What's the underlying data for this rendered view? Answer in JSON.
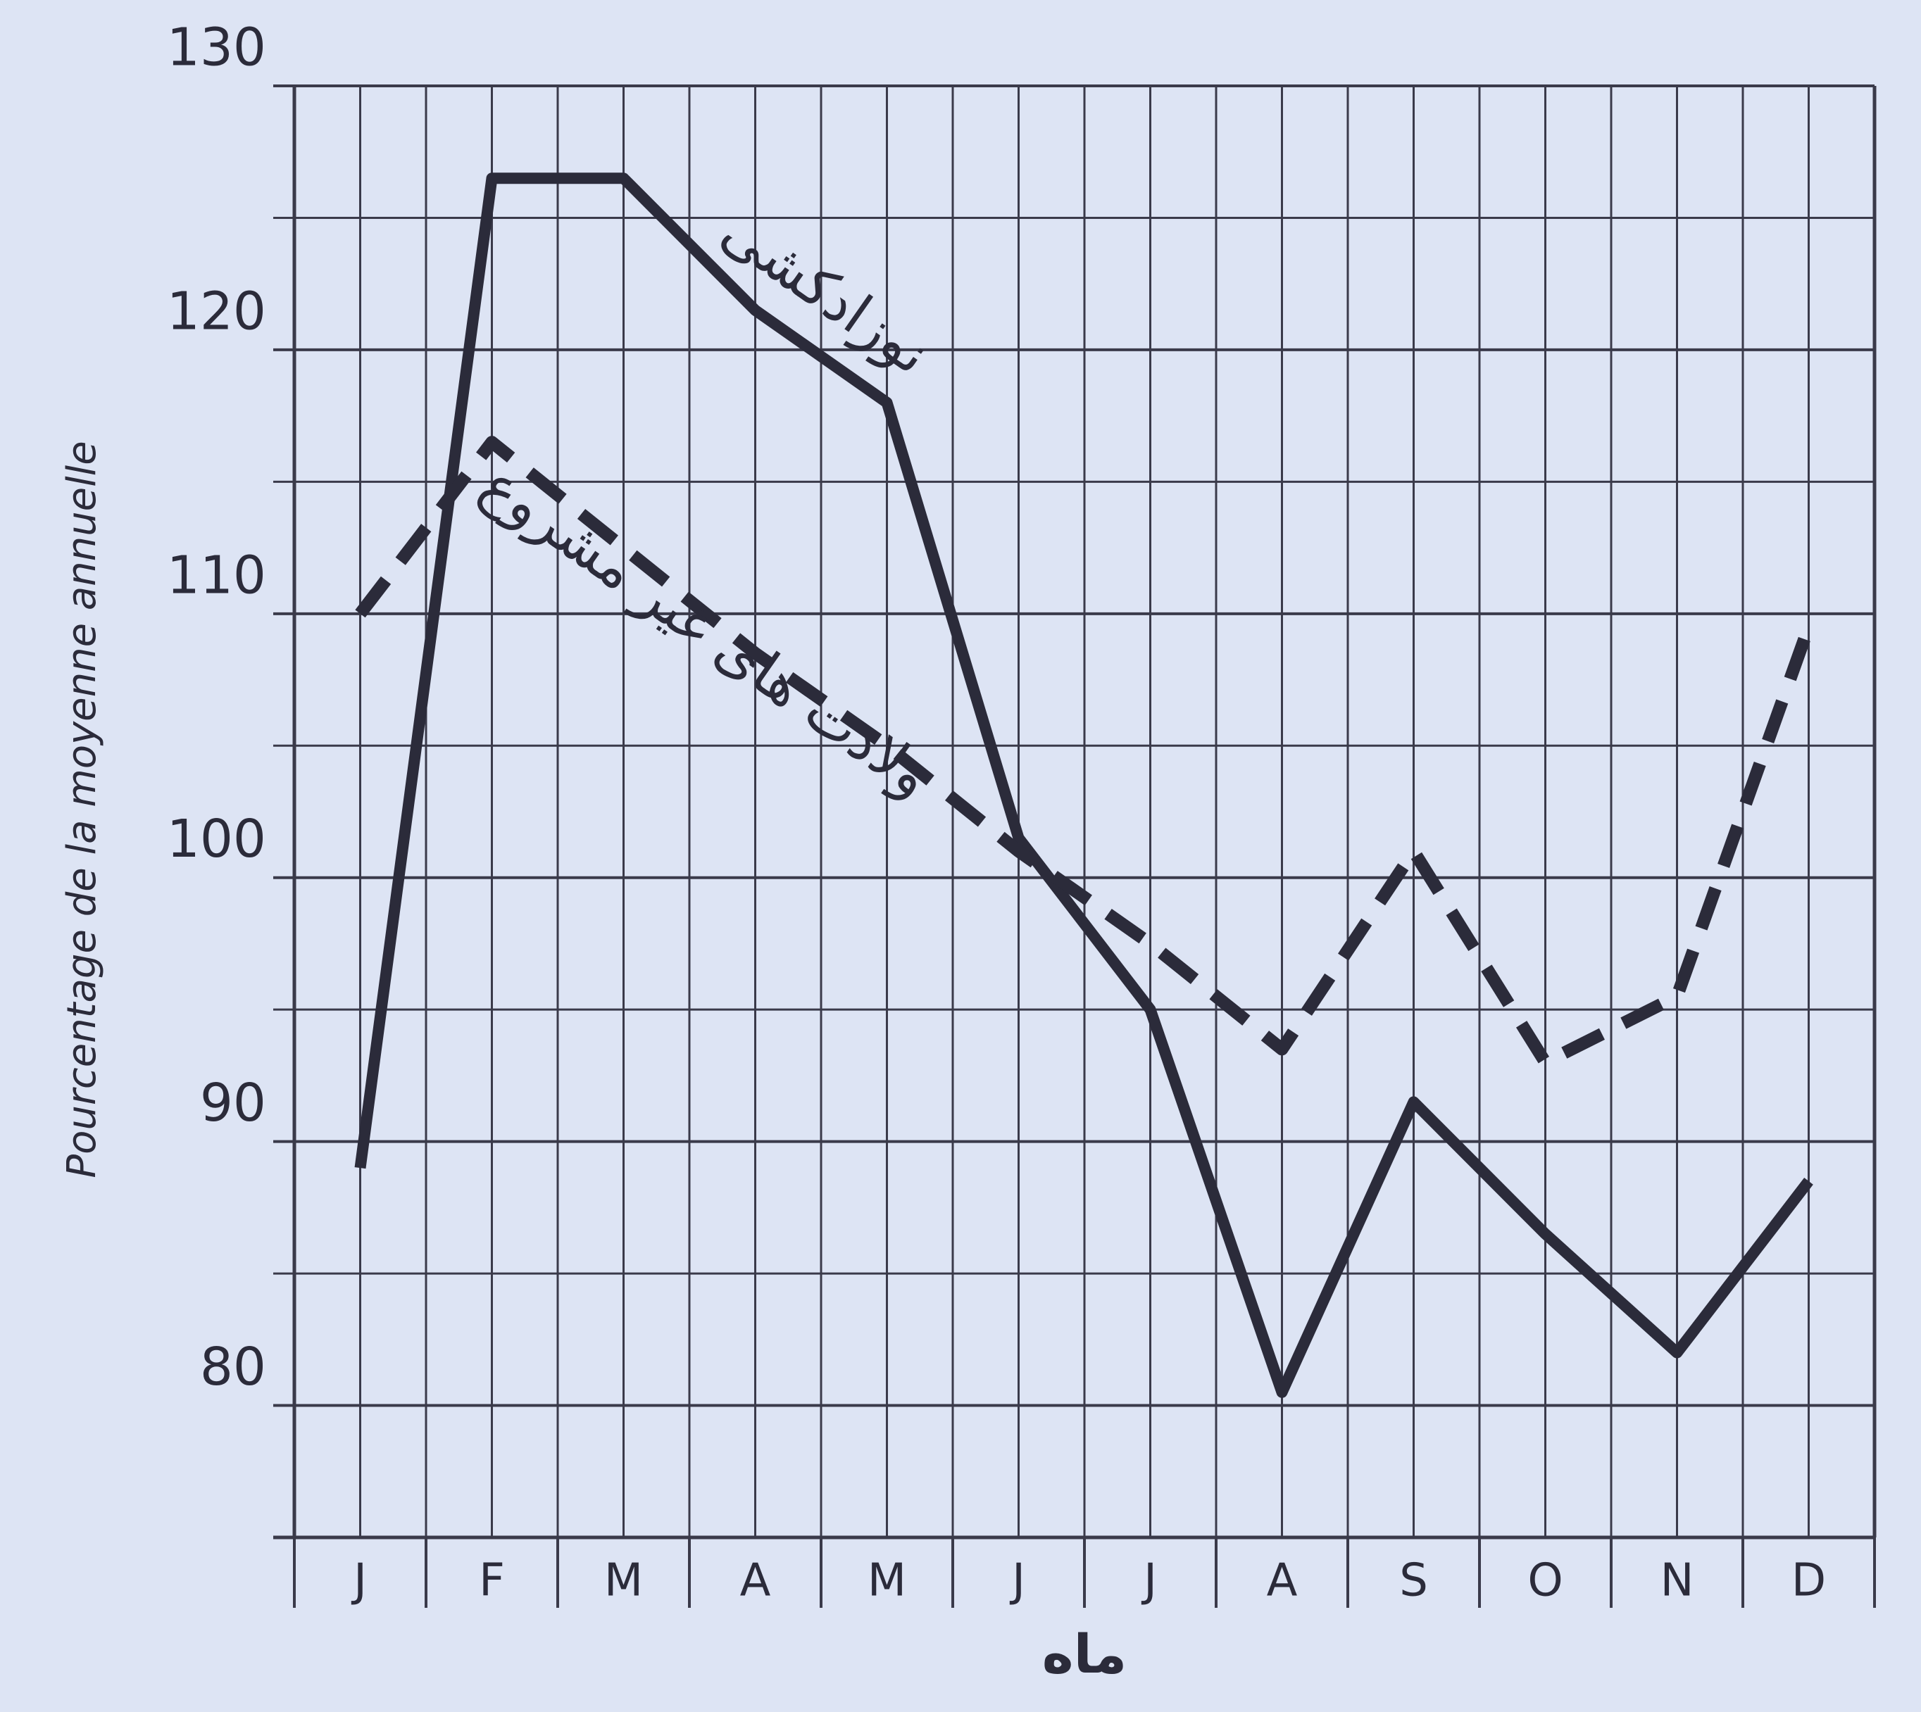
{
  "chart_data": {
    "type": "line",
    "y_label": "Pourcentage de la moyenne annuelle",
    "x_label": "ماه",
    "categories": [
      "J",
      "F",
      "M",
      "A",
      "M",
      "J",
      "J",
      "A",
      "S",
      "O",
      "N",
      "D"
    ],
    "series": [
      {
        "name": "نوزادکشی",
        "color": "#2b2b3a",
        "dash": false,
        "values": [
          89,
          126.5,
          126.5,
          121.5,
          118,
          101.5,
          95,
          80.5,
          91.5,
          86.5,
          82,
          88.5
        ]
      },
      {
        "name": "ولادت های غیر مشروع",
        "color": "#2b2b3a",
        "dash": true,
        "values": [
          110,
          116.5,
          112.5,
          108.5,
          105,
          101,
          97.5,
          93.5,
          101,
          93,
          95.5,
          109.5
        ]
      }
    ],
    "ylim": [
      75,
      130
    ],
    "yticks": [
      80,
      90,
      100,
      110,
      120,
      130
    ],
    "minor_yticks": [
      85,
      95,
      105,
      115,
      125
    ],
    "grid": true
  }
}
